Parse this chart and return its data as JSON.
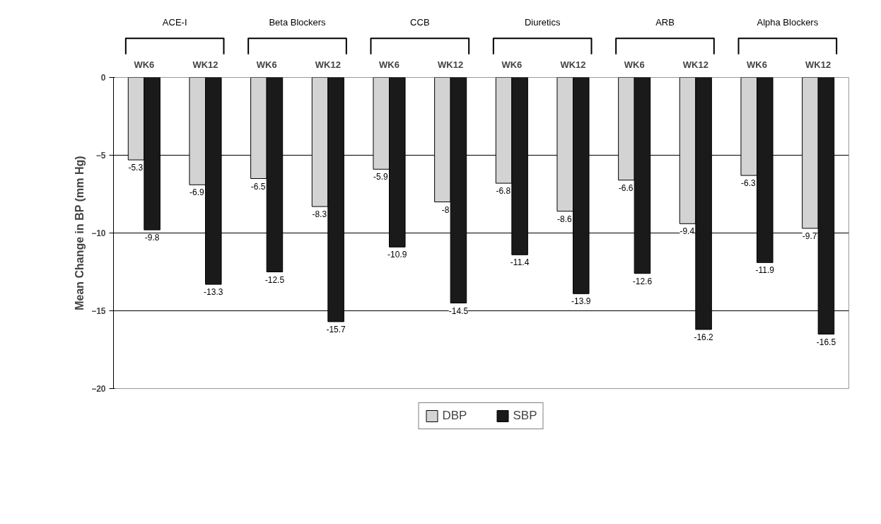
{
  "chart_data": {
    "type": "bar",
    "categories": [
      "WK6",
      "WK12",
      "WK6",
      "WK12",
      "WK6",
      "WK12",
      "WK6",
      "WK12",
      "WK6",
      "WK12",
      "WK6",
      "WK12"
    ],
    "annotations": [
      "ACE-I",
      "Beta Blockers",
      "CCB",
      "Diuretics",
      "ARB",
      "Alpha Blockers"
    ],
    "ylabel": "Mean Change in BP (mm Hg)",
    "series": [
      {
        "name": "DBP",
        "color": "#d3d3d3",
        "values": [
          -5.3,
          -6.9,
          -6.5,
          -8.3,
          -5.9,
          -8,
          -6.8,
          -8.6,
          -6.6,
          -9.4,
          -6.3,
          -9.7
        ]
      },
      {
        "name": "SBP",
        "color": "#1a1a1a",
        "values": [
          -9.8,
          -13.3,
          -12.5,
          -15.7,
          -10.9,
          -14.5,
          -11.4,
          -13.9,
          -12.6,
          -16.2,
          -11.9,
          -16.5
        ]
      }
    ],
    "ylim": [
      -20,
      0
    ],
    "yticks": [
      -20,
      -15,
      -10,
      -5,
      0
    ],
    "grid": "y",
    "legend": "bottom",
    "data_labels": true
  }
}
